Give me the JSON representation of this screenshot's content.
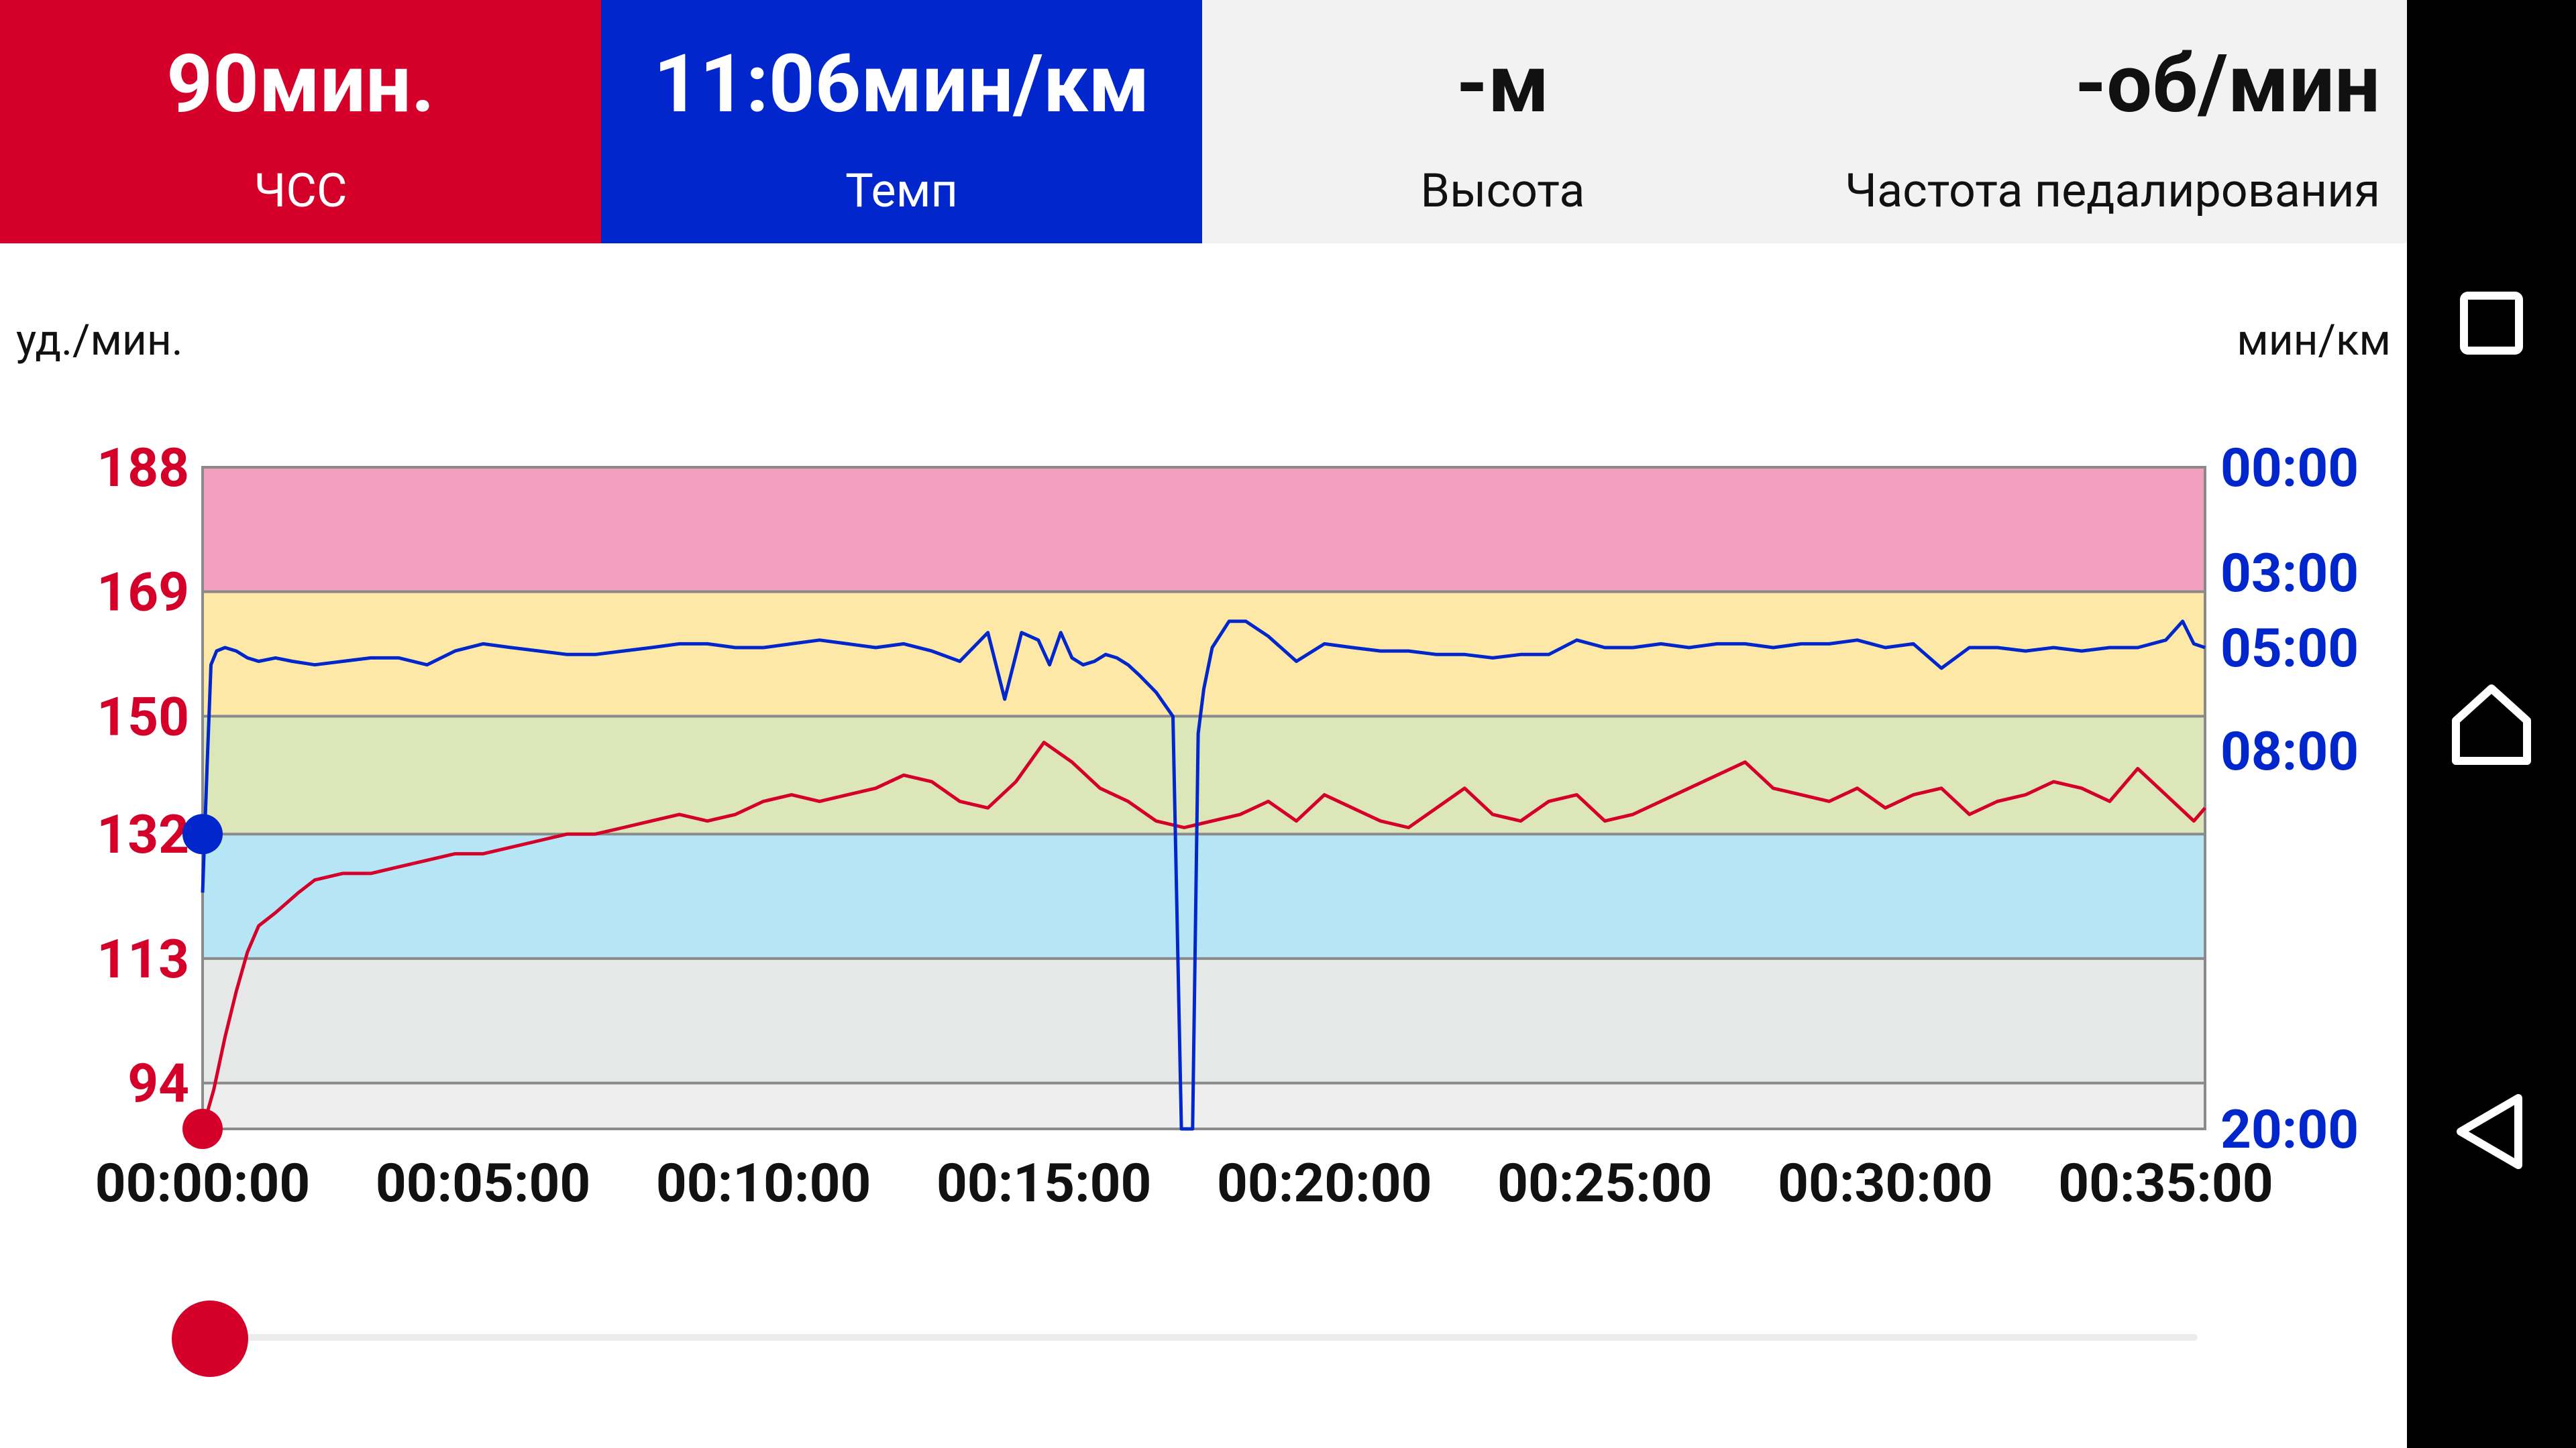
{
  "tiles": [
    {
      "value": "90мин.",
      "label": "ЧСС"
    },
    {
      "value": "11:06мин/км",
      "label": "Темп"
    },
    {
      "value": "-м",
      "label": "Высота"
    },
    {
      "value": "-об/мин",
      "label": "Частота педалирования"
    }
  ],
  "colors": {
    "hr": "#d4002a",
    "pace": "#0026cc",
    "zone_5": "#f2a0bd",
    "zone_4": "#fde8a8",
    "zone_3": "#dde6b8",
    "zone_2": "#b6e5f5",
    "zone_1": "#e6e8e8",
    "zone_0": "#eeeeee"
  },
  "chart_data": {
    "type": "line",
    "left_unit": "уд./мин.",
    "right_unit": "мин/км",
    "hr_ticks": [
      "188",
      "169",
      "150",
      "132",
      "113",
      "94"
    ],
    "hr_range": [
      87,
      188
    ],
    "pace_ticks": [
      "00:00",
      "03:00",
      "05:00",
      "08:00",
      "20:00"
    ],
    "pace_tick_minutes": [
      0,
      3,
      5,
      8,
      20
    ],
    "x_ticks": [
      "00:00:00",
      "00:05:00",
      "00:10:00",
      "00:15:00",
      "00:20:00",
      "00:25:00",
      "00:30:00",
      "00:35:00"
    ],
    "x_range_minutes": [
      0,
      35.7
    ],
    "hr_zones": [
      [
        169,
        188
      ],
      [
        150,
        169
      ],
      [
        132,
        150
      ],
      [
        113,
        132
      ],
      [
        94,
        113
      ],
      [
        87,
        94
      ]
    ],
    "series": [
      {
        "name": "ЧСС",
        "unit": "уд./мин.",
        "x_minutes": [
          0,
          0.2,
          0.4,
          0.6,
          0.8,
          1,
          1.3,
          1.7,
          2,
          2.5,
          3,
          3.5,
          4,
          4.5,
          5,
          5.5,
          6,
          6.5,
          7,
          7.5,
          8,
          8.5,
          9,
          9.5,
          10,
          10.5,
          11,
          11.5,
          12,
          12.5,
          13,
          13.5,
          14,
          14.5,
          15,
          15.5,
          16,
          16.5,
          17,
          17.5,
          18,
          18.5,
          19,
          19.5,
          20,
          20.5,
          21,
          21.5,
          22,
          22.5,
          23,
          23.5,
          24,
          24.5,
          25,
          25.5,
          26,
          26.5,
          27,
          27.5,
          28,
          28.5,
          29,
          29.5,
          30,
          30.5,
          31,
          31.5,
          32,
          32.5,
          33,
          33.5,
          34,
          34.5,
          35,
          35.5,
          35.7
        ],
        "values": [
          87,
          93,
          101,
          108,
          114,
          118,
          120,
          123,
          125,
          126,
          126,
          127,
          128,
          129,
          129,
          130,
          131,
          132,
          132,
          133,
          134,
          135,
          134,
          135,
          137,
          138,
          137,
          138,
          139,
          141,
          140,
          137,
          136,
          140,
          146,
          143,
          139,
          137,
          134,
          133,
          134,
          135,
          137,
          134,
          138,
          136,
          134,
          133,
          136,
          139,
          135,
          134,
          137,
          138,
          134,
          135,
          137,
          139,
          141,
          143,
          139,
          138,
          137,
          139,
          136,
          138,
          139,
          135,
          137,
          138,
          140,
          139,
          137,
          142,
          138,
          134,
          136
        ]
      },
      {
        "name": "Темп",
        "unit": "мин/км",
        "x_minutes": [
          0,
          0.08,
          0.15,
          0.25,
          0.4,
          0.6,
          0.8,
          1,
          1.3,
          1.6,
          2,
          2.5,
          3,
          3.5,
          4,
          4.5,
          5,
          5.5,
          6,
          6.5,
          7,
          7.5,
          8,
          8.5,
          9,
          9.5,
          10,
          10.5,
          11,
          11.5,
          12,
          12.5,
          13,
          13.5,
          14,
          14.3,
          14.6,
          14.9,
          15.1,
          15.3,
          15.5,
          15.7,
          15.9,
          16.1,
          16.3,
          16.5,
          16.7,
          17,
          17.3,
          17.45,
          17.5,
          17.55,
          17.65,
          17.75,
          17.85,
          18,
          18.3,
          18.6,
          19,
          19.5,
          20,
          20.5,
          21,
          21.5,
          22,
          22.5,
          23,
          23.5,
          24,
          24.5,
          25,
          25.5,
          26,
          26.5,
          27,
          27.5,
          28,
          28.5,
          29,
          29.5,
          30,
          30.5,
          31,
          31.5,
          32,
          32.5,
          33,
          33.5,
          34,
          34.5,
          35,
          35.3,
          35.5,
          35.7
        ],
        "values": [
          12.5,
          8.5,
          5.5,
          5.1,
          5.0,
          5.1,
          5.3,
          5.4,
          5.3,
          5.4,
          5.5,
          5.4,
          5.3,
          5.3,
          5.5,
          5.1,
          4.9,
          5.0,
          5.1,
          5.2,
          5.2,
          5.1,
          5.0,
          4.9,
          4.9,
          5.0,
          5.0,
          4.9,
          4.8,
          4.9,
          5.0,
          4.9,
          5.1,
          5.4,
          4.6,
          6.5,
          4.6,
          4.8,
          5.5,
          4.6,
          5.3,
          5.5,
          5.4,
          5.2,
          5.3,
          5.5,
          5.8,
          6.3,
          7.0,
          20.0,
          20.0,
          20.0,
          20.0,
          7.5,
          6.2,
          5.0,
          4.3,
          4.3,
          4.7,
          5.4,
          4.9,
          5.0,
          5.1,
          5.1,
          5.2,
          5.2,
          5.3,
          5.2,
          5.2,
          4.8,
          5.0,
          5.0,
          4.9,
          5.0,
          4.9,
          4.9,
          5.0,
          4.9,
          4.9,
          4.8,
          5.0,
          4.9,
          5.6,
          5.0,
          5.0,
          5.1,
          5.0,
          5.1,
          5.0,
          5.0,
          4.8,
          4.3,
          4.9,
          5.0
        ]
      }
    ]
  }
}
